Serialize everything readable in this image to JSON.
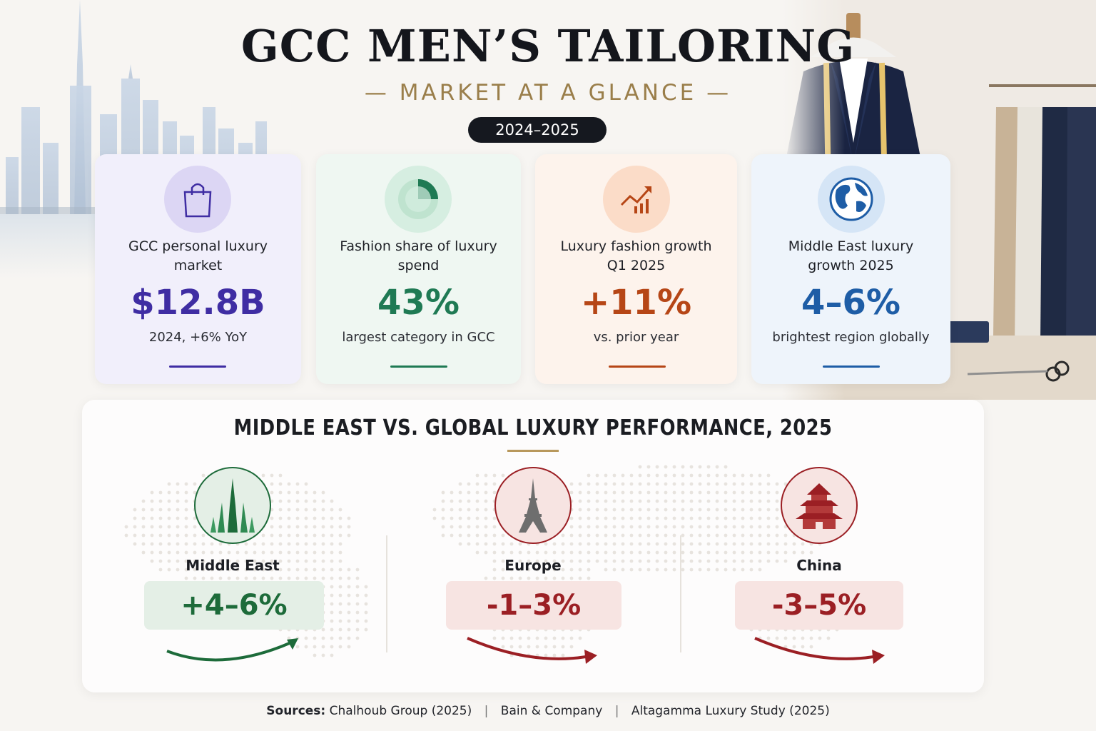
{
  "header": {
    "title": "GCC MEN’S TAILORING",
    "subtitle": "— MARKET AT A GLANCE —",
    "years": "2024–2025"
  },
  "cards": [
    {
      "label": "GCC personal luxury market",
      "value": "$12.8B",
      "note": "2024, +6% YoY",
      "icon": "shopping-bag-icon",
      "accent": "#3f2da3",
      "bg": "#f1effb",
      "icon_bg": "#dcd6f4"
    },
    {
      "label": "Fashion share of luxury spend",
      "value": "43%",
      "note": "largest category in GCC",
      "icon": "pie-chart-icon",
      "accent": "#1f7a54",
      "bg": "#eff7f2",
      "icon_bg": "#d6eee1",
      "share": 0.43
    },
    {
      "label": "Luxury fashion growth Q1 2025",
      "value": "+11%",
      "note": "vs. prior year",
      "icon": "growth-chart-icon",
      "accent": "#b64616",
      "bg": "#fdf3ec",
      "icon_bg": "#fbdcc8"
    },
    {
      "label": "Middle East luxury growth 2025",
      "value": "4–6%",
      "note": "brightest region globally",
      "icon": "globe-icon",
      "accent": "#1e5da6",
      "bg": "#eef4fb",
      "icon_bg": "#d5e5f6"
    }
  ],
  "comparison": {
    "title": "MIDDLE EAST VS. GLOBAL LUXURY PERFORMANCE, 2025",
    "regions": [
      {
        "name": "Middle East",
        "value": "+4–6%",
        "icon": "burj-khalifa-icon",
        "color": "#1d6b3a",
        "badge_bg": "#e4efe6",
        "trend": "up"
      },
      {
        "name": "Europe",
        "value": "-1–3%",
        "icon": "eiffel-tower-icon",
        "color": "#9b1f24",
        "badge_bg": "#f7e4e2",
        "trend": "down"
      },
      {
        "name": "China",
        "value": "-3–5%",
        "icon": "pagoda-icon",
        "color": "#9b1f24",
        "badge_bg": "#f7e4e2",
        "trend": "down"
      }
    ]
  },
  "sources": {
    "label": "Sources:",
    "items": [
      "Chalhoub Group (2025)",
      "Bain & Company",
      "Altagamma Luxury Study (2025)"
    ],
    "separator": "|"
  }
}
